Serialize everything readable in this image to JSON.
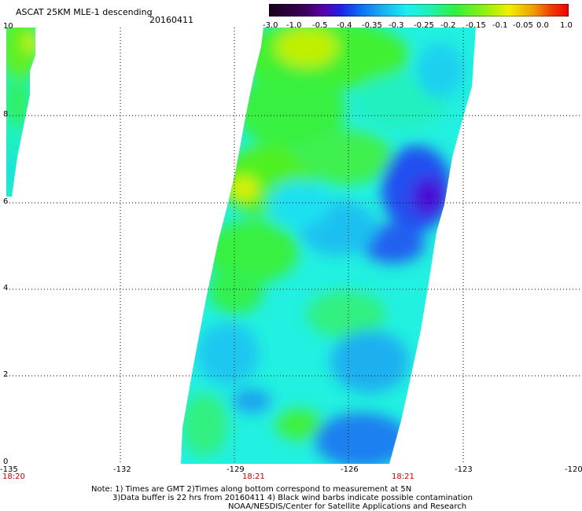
{
  "header": {
    "title": "ASCAT 25KM MLE-1 descending",
    "date": "20160411"
  },
  "colorbar": {
    "tick_labels": [
      "-3.0",
      "-1.0",
      "-0.5",
      "-0.4",
      "-0.35",
      "-0.3",
      "-0.25",
      "-0.2",
      "-0.15",
      "-0.1",
      "-0.05",
      "0.0",
      "1.0"
    ],
    "colors": [
      "#1a001a",
      "#3a0058",
      "#5a00a8",
      "#2020e8",
      "#0a6af0",
      "#1ab0f0",
      "#1af0f0",
      "#20f0b0",
      "#30f040",
      "#90f010",
      "#f0f000",
      "#f0a000",
      "#f04000",
      "#f00000"
    ]
  },
  "axes": {
    "x_ticks": [
      "-135",
      "-132",
      "-129",
      "-126",
      "-123",
      "-120"
    ],
    "y_ticks": [
      "0",
      "2",
      "4",
      "6",
      "8",
      "10"
    ],
    "time_labels": [
      "18:20",
      "18:21",
      "18:21"
    ]
  },
  "notes": {
    "line1": "Note: 1) Times are GMT 2)Times along bottom correspond to measurement at 5N",
    "line2": "3)Data buffer is 22 hrs from 20160411 4) Black wind barbs indicate possible contamination",
    "line3": "NOAA/NESDIS/Center for Satellite Applications and Research"
  },
  "colors": {
    "grid": "#000000",
    "time_label": "#cc0000",
    "background": "#ffffff"
  }
}
